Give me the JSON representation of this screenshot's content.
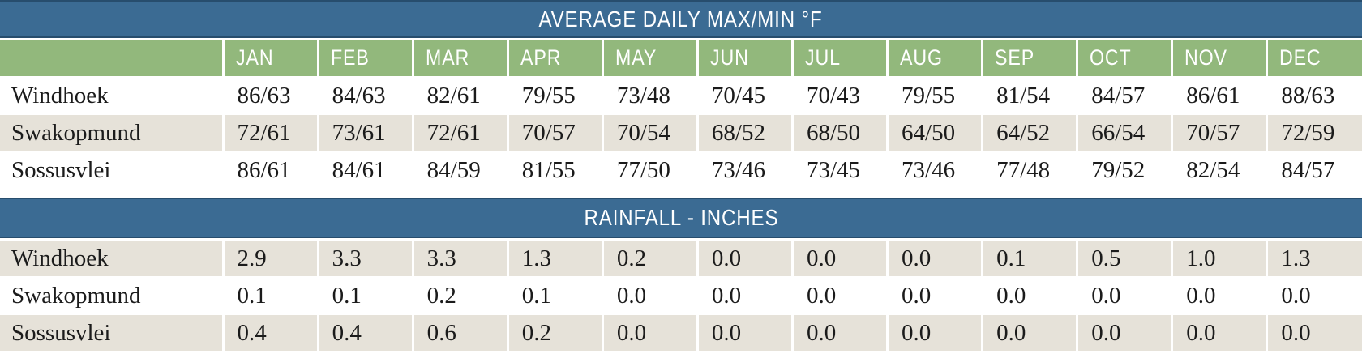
{
  "colors": {
    "band_blue": "#3B6B93",
    "header_green": "#92B87C",
    "row_beige": "#E6E2D9",
    "row_white": "#FFFFFF",
    "text_dark": "#1B1B1B",
    "text_white": "#FFFFFF"
  },
  "chart_data": {
    "type": "table",
    "temp_title": "AVERAGE DAILY MAX/MIN °F",
    "rain_title": "RAINFALL - INCHES",
    "months": [
      "JAN",
      "FEB",
      "MAR",
      "APR",
      "MAY",
      "JUN",
      "JUL",
      "AUG",
      "SEP",
      "OCT",
      "NOV",
      "DEC"
    ],
    "temp_rows": [
      {
        "location": "Windhoek",
        "values": [
          "86/63",
          "84/63",
          "82/61",
          "79/55",
          "73/48",
          "70/45",
          "70/43",
          "79/55",
          "81/54",
          "84/57",
          "86/61",
          "88/63"
        ]
      },
      {
        "location": "Swakopmund",
        "values": [
          "72/61",
          "73/61",
          "72/61",
          "70/57",
          "70/54",
          "68/52",
          "68/50",
          "64/50",
          "64/52",
          "66/54",
          "70/57",
          "72/59"
        ]
      },
      {
        "location": "Sossusvlei",
        "values": [
          "86/61",
          "84/61",
          "84/59",
          "81/55",
          "77/50",
          "73/46",
          "73/45",
          "73/46",
          "77/48",
          "79/52",
          "82/54",
          "84/57"
        ]
      }
    ],
    "rain_rows": [
      {
        "location": "Windhoek",
        "values": [
          "2.9",
          "3.3",
          "3.3",
          "1.3",
          "0.2",
          "0.0",
          "0.0",
          "0.0",
          "0.1",
          "0.5",
          "1.0",
          "1.3"
        ]
      },
      {
        "location": "Swakopmund",
        "values": [
          "0.1",
          "0.1",
          "0.2",
          "0.1",
          "0.0",
          "0.0",
          "0.0",
          "0.0",
          "0.0",
          "0.0",
          "0.0",
          "0.0"
        ]
      },
      {
        "location": "Sossusvlei",
        "values": [
          "0.4",
          "0.4",
          "0.6",
          "0.2",
          "0.0",
          "0.0",
          "0.0",
          "0.0",
          "0.0",
          "0.0",
          "0.0",
          "0.0"
        ]
      }
    ]
  }
}
